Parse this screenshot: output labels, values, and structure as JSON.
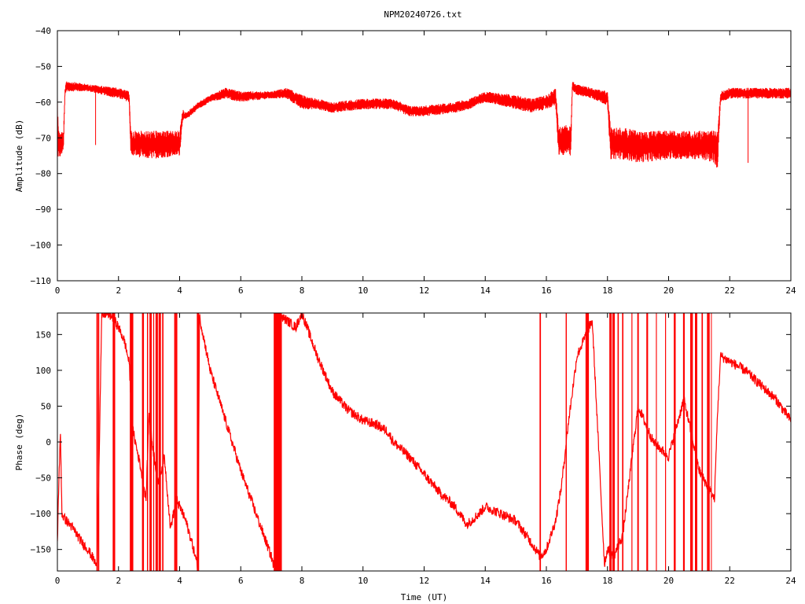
{
  "title": "NPM20240726.txt",
  "colors": {
    "series": "#ff0000",
    "axis": "#000000",
    "background": "#ffffff"
  },
  "chart_data": [
    {
      "type": "line",
      "ylabel": "Amplitude (dB)",
      "xlabel": "",
      "xlim": [
        0,
        24
      ],
      "ylim": [
        -110,
        -40
      ],
      "x_ticks": [
        0,
        2,
        4,
        6,
        8,
        10,
        12,
        14,
        16,
        18,
        20,
        22,
        24
      ],
      "y_ticks": [
        -110,
        -100,
        -90,
        -80,
        -70,
        -60,
        -50,
        -40
      ],
      "grid": false,
      "series": [
        {
          "note_band": "min/max envelope of dense signal",
          "x": [
            0.0,
            0.05,
            0.2,
            0.25,
            0.3,
            1.0,
            2.0,
            2.35,
            2.4,
            3.0,
            4.0,
            4.1,
            4.2,
            4.6,
            5.0,
            5.5,
            6.0,
            7.0,
            7.5,
            8.0,
            8.5,
            9.0,
            10.0,
            11.0,
            11.5,
            12.0,
            13.0,
            13.5,
            14.0,
            15.0,
            15.5,
            16.0,
            16.3,
            16.4,
            16.8,
            16.85,
            17.0,
            17.5,
            18.0,
            18.1,
            18.5,
            19.0,
            20.0,
            21.0,
            21.5,
            21.6,
            21.7,
            22.0,
            22.5,
            23.0,
            24.0
          ],
          "upper": [
            -56,
            -68,
            -68,
            -56,
            -54,
            -55,
            -56,
            -57,
            -68,
            -68,
            -68,
            -62,
            -63,
            -60,
            -58,
            -56,
            -57,
            -57,
            -56,
            -58,
            -59,
            -60,
            -59,
            -59,
            -61,
            -61,
            -60,
            -59,
            -57,
            -58,
            -59,
            -58,
            -56,
            -67,
            -66,
            -54,
            -55,
            -56,
            -57,
            -67,
            -67,
            -68,
            -68,
            -68,
            -68,
            -68,
            -57,
            -56,
            -56,
            -56,
            -56
          ],
          "lower": [
            -76,
            -76,
            -74,
            -58,
            -57,
            -57,
            -59,
            -60,
            -75,
            -76,
            -75,
            -65,
            -65,
            -62,
            -60,
            -59,
            -60,
            -59,
            -59,
            -62,
            -62,
            -63,
            -62,
            -62,
            -64,
            -64,
            -63,
            -62,
            -60,
            -62,
            -63,
            -62,
            -61,
            -75,
            -75,
            -57,
            -58,
            -59,
            -61,
            -76,
            -76,
            -77,
            -76,
            -76,
            -77,
            -79,
            -60,
            -59,
            -59,
            -59,
            -59
          ]
        }
      ],
      "spikes": [
        {
          "x": 1.25,
          "y": -72
        },
        {
          "x": 22.6,
          "y": -77
        }
      ]
    },
    {
      "type": "line",
      "ylabel": "Phase (deg)",
      "xlabel": "Time (UT)",
      "xlim": [
        0,
        24
      ],
      "ylim": [
        -180,
        180
      ],
      "x_ticks": [
        0,
        2,
        4,
        6,
        8,
        10,
        12,
        14,
        16,
        18,
        20,
        22,
        24
      ],
      "y_ticks": [
        -150,
        -100,
        -50,
        0,
        50,
        100,
        150
      ],
      "grid": false,
      "series": [
        {
          "x": [
            0.0,
            0.05,
            0.1,
            0.15,
            0.2,
            0.3,
            0.5,
            0.8,
            1.0,
            1.2,
            1.3,
            1.45,
            1.6,
            1.8,
            2.0,
            2.2,
            2.35,
            2.45,
            2.7,
            2.9,
            3.0,
            3.1,
            3.3,
            3.5,
            3.7,
            3.9,
            4.0,
            4.2,
            4.4,
            4.6,
            4.65,
            5.0,
            5.5,
            6.0,
            6.5,
            7.0,
            7.1,
            7.3,
            7.5,
            7.8,
            8.0,
            8.5,
            9.0,
            9.5,
            10.0,
            10.4,
            10.8,
            11.0,
            11.5,
            12.0,
            12.5,
            13.0,
            13.4,
            13.8,
            14.0,
            14.5,
            15.0,
            15.5,
            15.8,
            16.0,
            16.3,
            16.5,
            16.7,
            17.0,
            17.5,
            17.9,
            18.0,
            18.2,
            18.5,
            19.0,
            19.5,
            20.0,
            20.5,
            21.0,
            21.5,
            21.6,
            21.7,
            21.9,
            22.5,
            23.0,
            23.5,
            24.0
          ],
          "y": [
            -140,
            -50,
            10,
            -100,
            -105,
            -110,
            -120,
            -140,
            -150,
            -165,
            -175,
            175,
            180,
            175,
            160,
            140,
            110,
            20,
            -30,
            -80,
            40,
            0,
            -60,
            -20,
            -120,
            -80,
            -90,
            -110,
            -140,
            -175,
            175,
            100,
            30,
            -40,
            -100,
            -160,
            -175,
            175,
            170,
            160,
            180,
            120,
            70,
            45,
            30,
            25,
            15,
            0,
            -20,
            -45,
            -70,
            -90,
            -115,
            -100,
            -90,
            -100,
            -110,
            -140,
            -160,
            -150,
            -110,
            -60,
            20,
            120,
            170,
            -170,
            -150,
            -160,
            -130,
            50,
            0,
            -20,
            60,
            -40,
            -80,
            40,
            120,
            115,
            100,
            80,
            60,
            30
          ]
        }
      ],
      "wrap_bursts": [
        1.3,
        1.35,
        1.85,
        2.4,
        2.45,
        2.8,
        2.95,
        3.05,
        3.15,
        3.25,
        3.35,
        3.45,
        3.85,
        3.9,
        4.6,
        7.1,
        7.15,
        7.2,
        7.25,
        7.3,
        15.8,
        16.65,
        17.3,
        17.35,
        18.1,
        18.2,
        18.35,
        18.5,
        18.8,
        19.0,
        19.3,
        19.6,
        19.9,
        20.2,
        20.5,
        20.75,
        20.9,
        21.1,
        21.3,
        21.4
      ]
    }
  ]
}
